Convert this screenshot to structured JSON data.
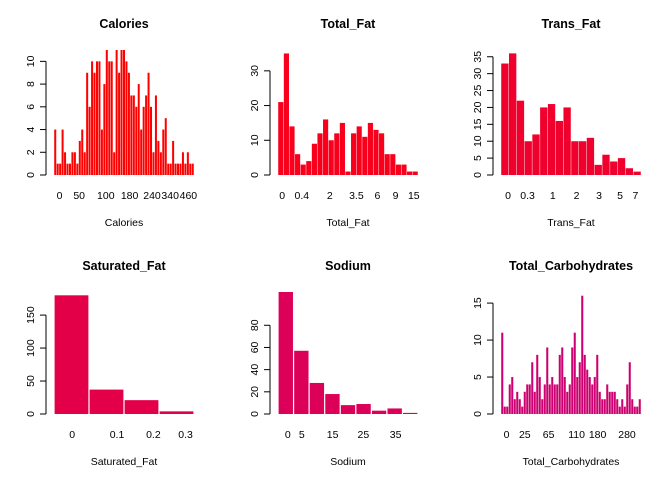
{
  "chart_data": [
    {
      "type": "bar",
      "title": "Calories",
      "xlabel": "Calories",
      "ylabel": "",
      "color": "#ff0000",
      "xtick_labels": [
        "0",
        "50",
        "100",
        "180",
        "240",
        "340",
        "460"
      ],
      "yticks": [
        0,
        2,
        4,
        6,
        8,
        10
      ],
      "ylim": [
        0,
        11
      ],
      "values": [
        4,
        1,
        1,
        4,
        2,
        1,
        1,
        2,
        2,
        1,
        3,
        4,
        2,
        9,
        6,
        10,
        9,
        10,
        10,
        4,
        8,
        11,
        10,
        10,
        2,
        11,
        9,
        11,
        11,
        10,
        9,
        7,
        7,
        6,
        8,
        4,
        6,
        7,
        9,
        6,
        2,
        7,
        3,
        2,
        4,
        5,
        1,
        1,
        3,
        1,
        1,
        1,
        2,
        1,
        2,
        1,
        1
      ]
    },
    {
      "type": "bar",
      "title": "Total_Fat",
      "xlabel": "Total_Fat",
      "ylabel": "",
      "color": "#f8001c",
      "xtick_labels": [
        "0",
        "0.4",
        "2",
        "3.5",
        "6",
        "9",
        "15"
      ],
      "yticks": [
        0,
        10,
        20,
        30
      ],
      "ylim": [
        0,
        36
      ],
      "values": [
        21,
        35,
        14,
        6,
        3,
        4,
        9,
        12,
        16,
        10,
        12,
        15,
        1,
        12,
        14,
        11,
        15,
        13,
        12,
        6,
        6,
        3,
        3,
        1,
        1
      ]
    },
    {
      "type": "bar",
      "title": "Trans_Fat",
      "xlabel": "Trans_Fat",
      "ylabel": "",
      "color": "#f0002c",
      "xtick_labels": [
        "0",
        "0.3",
        "1",
        "2",
        "3",
        "5",
        "7"
      ],
      "yticks": [
        0,
        5,
        10,
        15,
        20,
        25,
        30,
        35
      ],
      "ylim": [
        0,
        37
      ],
      "values": [
        33,
        36,
        22,
        10,
        12,
        20,
        21,
        16,
        20,
        10,
        10,
        11,
        3,
        6,
        4,
        5,
        2,
        1
      ]
    },
    {
      "type": "bar",
      "title": "Saturated_Fat",
      "xlabel": "Saturated_Fat",
      "ylabel": "",
      "color": "#e40048",
      "xtick_labels": [
        "0",
        "0.1",
        "0.2",
        "0.3"
      ],
      "yticks": [
        0,
        50,
        100,
        150
      ],
      "ylim": [
        0,
        185
      ],
      "values": [
        180,
        37,
        21,
        4
      ]
    },
    {
      "type": "bar",
      "title": "Sodium",
      "xlabel": "Sodium",
      "ylabel": "",
      "color": "#dc0058",
      "xtick_labels": [
        "0",
        "5",
        "15",
        "25",
        "35"
      ],
      "yticks": [
        0,
        20,
        40,
        60,
        80
      ],
      "ylim": [
        0,
        110
      ],
      "values": [
        110,
        57,
        28,
        18,
        8,
        9,
        3,
        5,
        1
      ]
    },
    {
      "type": "bar",
      "title": "Total_Carbohydrates",
      "xlabel": "Total_Carbohydrates",
      "ylabel": "",
      "color": "#cc0070",
      "xtick_labels": [
        "0",
        "25",
        "65",
        "110",
        "180",
        "280"
      ],
      "yticks": [
        0,
        5,
        10,
        15
      ],
      "ylim": [
        0,
        16.5
      ],
      "values": [
        11,
        1,
        1,
        4,
        5,
        2,
        3,
        2,
        1,
        3,
        4,
        4,
        7,
        3,
        8,
        5,
        2,
        4,
        9,
        4,
        5,
        4,
        4,
        8,
        9,
        5,
        3,
        4,
        9,
        11,
        5,
        7,
        16,
        8,
        6,
        5,
        4,
        5,
        8,
        3,
        2,
        2,
        4,
        3,
        3,
        3,
        2,
        1,
        2,
        1,
        4,
        7,
        2,
        1,
        1,
        2
      ]
    }
  ]
}
